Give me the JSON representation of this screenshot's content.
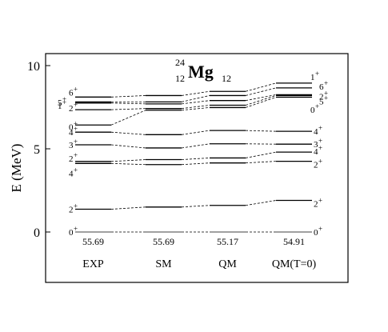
{
  "chart_data": {
    "type": "level-scheme",
    "title": {
      "mass": "24",
      "charge": "12",
      "symbol": "Mg",
      "neutrons": "12"
    },
    "ylabel": "E (MeV)",
    "ylim": [
      -3.5,
      11.5
    ],
    "yticks": [
      0,
      5,
      10
    ],
    "columns": [
      {
        "label": "EXP",
        "value": "55.69"
      },
      {
        "label": "SM",
        "value": "55.69"
      },
      {
        "label": "QM",
        "value": "55.17"
      },
      {
        "label": "QM(T=0)",
        "value": "54.91"
      }
    ],
    "left_labels": [
      {
        "text": "0",
        "sup": "+",
        "e": 0.0
      },
      {
        "text": "2",
        "sup": "+",
        "e": 1.37
      },
      {
        "text": "4",
        "sup": "+",
        "e": 3.93
      },
      {
        "text": "2",
        "sup": "+",
        "e": 4.24
      },
      {
        "text": "3",
        "sup": "+",
        "e": 5.24
      },
      {
        "text": "4",
        "sup": "+",
        "e": 6.0
      },
      {
        "text": "0",
        "sup": "+",
        "e": 6.43
      },
      {
        "text": "2",
        "sup": "+",
        "e": 7.35
      },
      {
        "text": "1",
        "sup": "+",
        "e": 7.6
      },
      {
        "text": "5",
        "sup": "+",
        "e": 7.78
      },
      {
        "text": "6",
        "sup": "+",
        "e": 8.11
      }
    ],
    "right_labels": [
      {
        "text": "0",
        "sup": "+",
        "e": 0.0
      },
      {
        "text": "2",
        "sup": "+",
        "e": 1.9
      },
      {
        "text": "2",
        "sup": "+",
        "e": 4.25
      },
      {
        "text": "4",
        "sup": "+",
        "e": 4.8
      },
      {
        "text": "3",
        "sup": "+",
        "e": 5.28
      },
      {
        "text": "4",
        "sup": "+",
        "e": 6.05
      },
      {
        "text": "0",
        "sup": "+",
        "e": 7.75
      },
      {
        "text": "5",
        "sup": "+",
        "e": 8.1
      },
      {
        "text": "2",
        "sup": "+",
        "e": 8.25
      },
      {
        "text": "6",
        "sup": "+",
        "e": 8.66
      },
      {
        "text": "1",
        "sup": "+",
        "e": 8.95
      }
    ],
    "series": [
      {
        "values": [
          0.0,
          0.0,
          0.0,
          0.0
        ]
      },
      {
        "values": [
          1.37,
          1.5,
          1.6,
          1.9
        ]
      },
      {
        "values": [
          4.12,
          4.05,
          4.15,
          4.25
        ]
      },
      {
        "values": [
          4.24,
          4.35,
          4.45,
          4.8
        ]
      },
      {
        "values": [
          5.24,
          5.05,
          5.3,
          5.28
        ]
      },
      {
        "values": [
          6.0,
          5.85,
          6.1,
          6.05
        ]
      },
      {
        "values": [
          6.43,
          7.32,
          7.48,
          8.1
        ]
      },
      {
        "values": [
          7.35,
          7.42,
          7.62,
          8.2
        ]
      },
      {
        "values": [
          7.75,
          7.7,
          7.9,
          8.25
        ]
      },
      {
        "values": [
          7.82,
          7.82,
          8.2,
          8.66
        ]
      },
      {
        "values": [
          8.11,
          8.2,
          8.45,
          8.95
        ]
      }
    ]
  }
}
